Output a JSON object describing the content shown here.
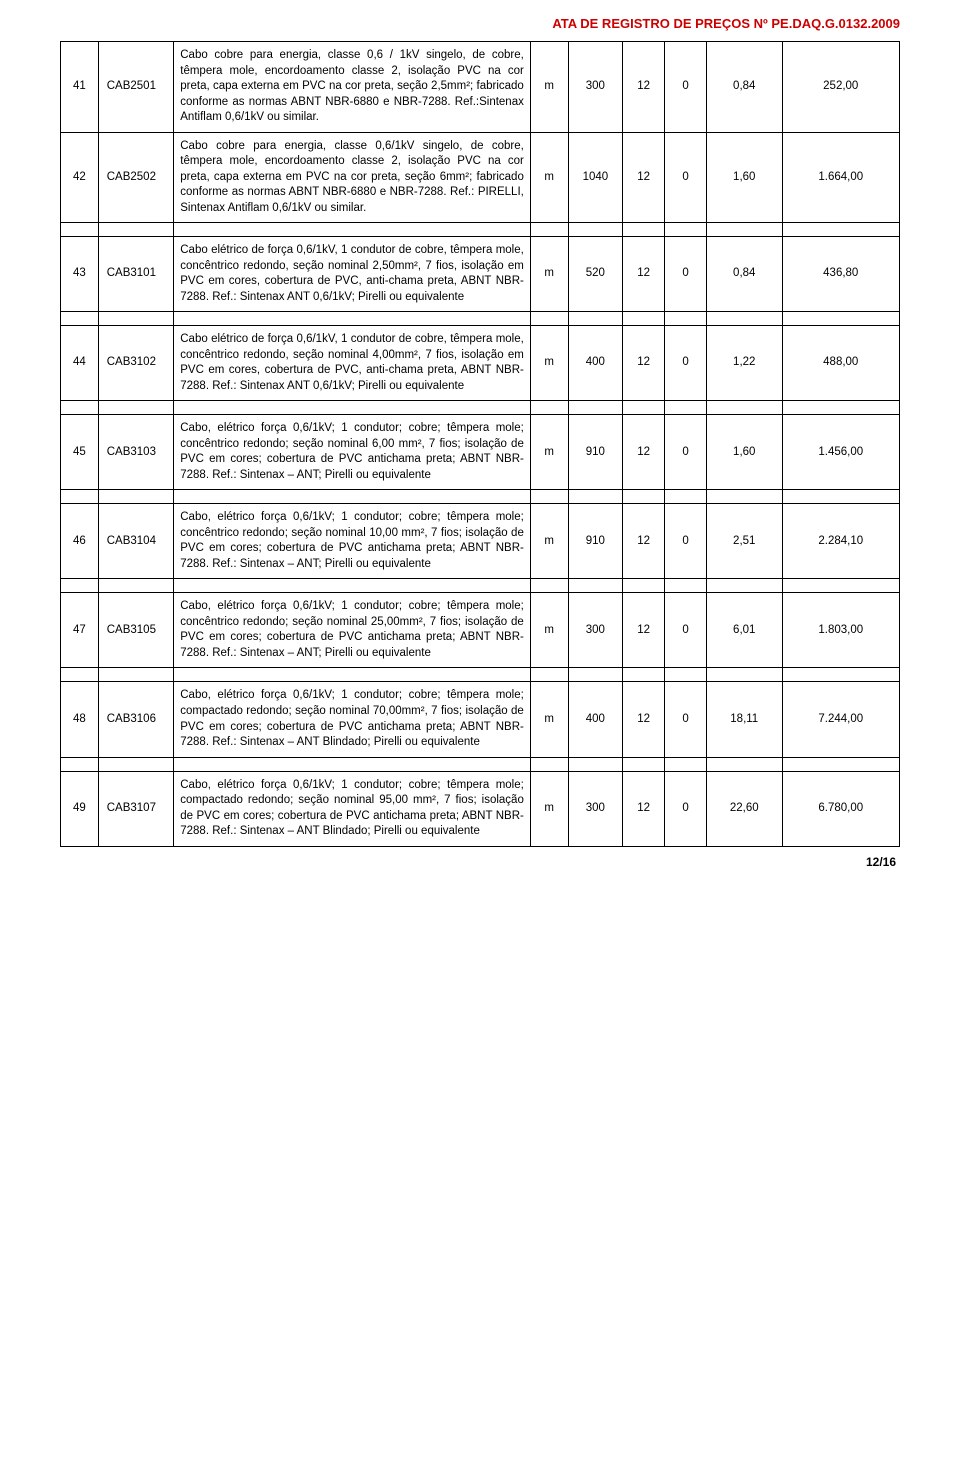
{
  "header_title": "ATA DE REGISTRO DE PREÇOS Nº PE.DAQ.G.0132.2009",
  "footer": "12/16",
  "colors": {
    "header_red": "#cc0000",
    "text": "#000000",
    "border": "#000000",
    "background": "#ffffff"
  },
  "rows": [
    {
      "idx": "41",
      "code": "CAB2501",
      "desc": "Cabo cobre para energia, classe 0,6 / 1kV singelo, de cobre, têmpera mole, encordoamento classe 2, isolação PVC na cor preta, capa externa em PVC na cor preta, seção 2,5mm²; fabricado conforme as normas ABNT NBR-6880 e NBR-7288. Ref.:Sintenax Antiflam 0,6/1kV ou similar.",
      "unit": "m",
      "c1": "300",
      "c2": "12",
      "c3": "0",
      "price": "0,84",
      "total": "252,00"
    },
    {
      "idx": "42",
      "code": "CAB2502",
      "desc": "Cabo cobre para energia, classe 0,6/1kV singelo, de cobre, têmpera mole, encordoamento classe 2, isolação PVC na cor preta, capa externa em PVC na cor preta, seção 6mm²; fabricado conforme as normas ABNT NBR-6880 e NBR-7288. Ref.: PIRELLI, Sintenax Antiflam 0,6/1kV ou similar.",
      "unit": "m",
      "c1": "1040",
      "c2": "12",
      "c3": "0",
      "price": "1,60",
      "total": "1.664,00"
    },
    {
      "idx": "43",
      "code": "CAB3101",
      "desc": "Cabo elétrico de força 0,6/1kV, 1 condutor de cobre, têmpera mole, concêntrico redondo, seção nominal 2,50mm², 7 fios, isolação em PVC em cores, cobertura de PVC, anti-chama preta, ABNT NBR-7288. Ref.: Sintenax ANT 0,6/1kV; Pirelli ou equivalente",
      "unit": "m",
      "c1": "520",
      "c2": "12",
      "c3": "0",
      "price": "0,84",
      "total": "436,80"
    },
    {
      "idx": "44",
      "code": "CAB3102",
      "desc": "Cabo elétrico de força 0,6/1kV, 1 condutor de cobre, têmpera mole, concêntrico redondo, seção nominal 4,00mm², 7 fios, isolação em PVC em cores, cobertura de PVC, anti-chama preta, ABNT NBR-7288. Ref.: Sintenax ANT 0,6/1kV; Pirelli ou equivalente",
      "unit": "m",
      "c1": "400",
      "c2": "12",
      "c3": "0",
      "price": "1,22",
      "total": "488,00"
    },
    {
      "idx": "45",
      "code": "CAB3103",
      "desc": "Cabo, elétrico força 0,6/1kV; 1 condutor; cobre; têmpera mole; concêntrico redondo; seção nominal 6,00 mm², 7 fios; isolação de PVC em cores; cobertura de PVC antichama preta; ABNT NBR-7288. Ref.: Sintenax – ANT; Pirelli ou equivalente",
      "unit": "m",
      "c1": "910",
      "c2": "12",
      "c3": "0",
      "price": "1,60",
      "total": "1.456,00"
    },
    {
      "idx": "46",
      "code": "CAB3104",
      "desc": "Cabo, elétrico força 0,6/1kV; 1 condutor; cobre; têmpera mole; concêntrico redondo; seção nominal 10,00 mm², 7 fios; isolação de PVC em cores; cobertura de PVC antichama preta; ABNT NBR-7288. Ref.: Sintenax – ANT; Pirelli ou equivalente",
      "unit": "m",
      "c1": "910",
      "c2": "12",
      "c3": "0",
      "price": "2,51",
      "total": "2.284,10"
    },
    {
      "idx": "47",
      "code": "CAB3105",
      "desc": "Cabo, elétrico força 0,6/1kV; 1 condutor; cobre; têmpera mole; concêntrico redondo; seção nominal 25,00mm², 7 fios; isolação de PVC em cores; cobertura de PVC antichama preta; ABNT NBR-7288. Ref.: Sintenax – ANT; Pirelli ou equivalente",
      "unit": "m",
      "c1": "300",
      "c2": "12",
      "c3": "0",
      "price": "6,01",
      "total": "1.803,00"
    },
    {
      "idx": "48",
      "code": "CAB3106",
      "desc": "Cabo, elétrico força 0,6/1kV; 1 condutor; cobre; têmpera mole; compactado redondo; seção nominal 70,00mm², 7 fios; isolação de PVC em cores; cobertura de PVC antichama preta; ABNT NBR-7288. Ref.: Sintenax – ANT Blindado; Pirelli ou equivalente",
      "unit": "m",
      "c1": "400",
      "c2": "12",
      "c3": "0",
      "price": "18,11",
      "total": "7.244,00"
    },
    {
      "idx": "49",
      "code": "CAB3107",
      "desc": "Cabo, elétrico força 0,6/1kV; 1 condutor; cobre; têmpera mole; compactado redondo; seção nominal 95,00 mm², 7 fios; isolação de PVC em cores; cobertura de PVC antichama preta; ABNT NBR-7288. Ref.: Sintenax – ANT Blindado; Pirelli ou equivalente",
      "unit": "m",
      "c1": "300",
      "c2": "12",
      "c3": "0",
      "price": "22,60",
      "total": "6.780,00"
    }
  ]
}
